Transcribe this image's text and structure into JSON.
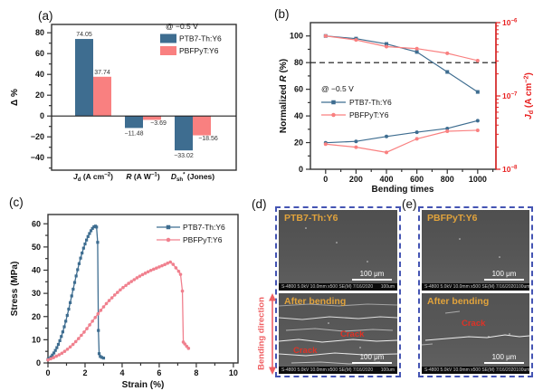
{
  "panels": {
    "a_label": "(a)",
    "b_label": "(b)",
    "c_label": "(c)",
    "d_label": "(d)",
    "e_label": "(e)"
  },
  "colors": {
    "series_blue": "#3e6d90",
    "series_pink": "#f98080",
    "series_pink_c": "#f0808e",
    "right_axis_red": "#e82222",
    "dashed_box_blue": "#4454b3",
    "sem_label_orange": "#e1a33c",
    "crack_red": "#e03226",
    "bending_red": "#ef5f62"
  },
  "sem": {
    "scale_bar_label": "100 μm",
    "meta_left": "S-4800 5.0kV 10.0mm x500 SE(M) 7/16/2020",
    "meta_right": "100um",
    "bending_direction_label": "Bending direction",
    "d": {
      "top_label": "PTB7-Th:Y6",
      "bottom_label": "After bending",
      "crack_labels": [
        "Crack",
        "Crack"
      ]
    },
    "e": {
      "top_label": "PBFPyT:Y6",
      "bottom_label": "After bending",
      "crack_labels": [
        "Crack"
      ]
    }
  },
  "chart_data": [
    {
      "id": "panel-a",
      "type": "bar",
      "ylabel": "Δ %",
      "ylim": [
        -52,
        88
      ],
      "yticks": [
        -40,
        -20,
        0,
        20,
        40,
        60,
        80
      ],
      "categories": [
        "Jd (A cm−2)",
        "R (A W−1)",
        "Dsh* (Jones)"
      ],
      "categories_rich": [
        [
          {
            "t": "J",
            "s": "i"
          },
          {
            "t": "d",
            "s": "sub"
          },
          {
            "t": " (A cm"
          },
          {
            "t": "−2",
            "s": "sup"
          },
          {
            "t": ")"
          }
        ],
        [
          {
            "t": "R",
            "s": "i"
          },
          {
            "t": " (A W"
          },
          {
            "t": "−1",
            "s": "sup"
          },
          {
            "t": ")"
          }
        ],
        [
          {
            "t": "D",
            "s": "i"
          },
          {
            "t": "sh",
            "s": "sub"
          },
          {
            "t": "*",
            "s": "sup"
          },
          {
            "t": " (Jones)"
          }
        ]
      ],
      "legend_title": "@ −0.5 V",
      "series": [
        {
          "name": "PTB7-Th:Y6",
          "color": "#3e6d90",
          "values": [
            74.05,
            -11.48,
            -33.02
          ],
          "value_labels": [
            "74.05",
            "−11.48",
            "−33.02"
          ]
        },
        {
          "name": "PBFPyT:Y6",
          "color": "#f98080",
          "values": [
            37.74,
            -3.69,
            -18.56
          ],
          "value_labels": [
            "37.74",
            "−3.69",
            "−18.56"
          ]
        }
      ]
    },
    {
      "id": "panel-b",
      "type": "line",
      "xlabel": "Bending times",
      "ylabel_left": "Normalized R (%)",
      "ylabel_left_rich": [
        {
          "t": "Normalized "
        },
        {
          "t": "R",
          "s": "i"
        },
        {
          "t": " (%)"
        }
      ],
      "ylabel_right": "Jd (A cm−2)",
      "ylabel_right_rich": [
        {
          "t": "J",
          "s": "i"
        },
        {
          "t": "d",
          "s": "sub"
        },
        {
          "t": " (A cm"
        },
        {
          "t": "−2",
          "s": "sup"
        },
        {
          "t": ")"
        }
      ],
      "x": [
        0,
        200,
        400,
        600,
        800,
        1000
      ],
      "xticks": [
        0,
        200,
        400,
        600,
        800,
        1000
      ],
      "xlim": [
        -100,
        1120
      ],
      "ylim_left": [
        0,
        110
      ],
      "yticks_left": [
        0,
        20,
        40,
        60,
        80,
        100
      ],
      "right_axis_log_range": [
        1e-08,
        1e-06
      ],
      "yticks_right": [
        1e-06,
        1e-07,
        1e-08
      ],
      "yticks_right_rich": [
        [
          {
            "t": "10"
          },
          {
            "t": "−6",
            "s": "sup"
          }
        ],
        [
          {
            "t": "10"
          },
          {
            "t": "−7",
            "s": "sup"
          }
        ],
        [
          {
            "t": "10"
          },
          {
            "t": "−8",
            "s": "sup"
          }
        ]
      ],
      "dashed_threshold_left": 80,
      "legend_title": "@ −0.5 V",
      "series": [
        {
          "name": "PTB7-Th:Y6",
          "axis": "left",
          "marker": "square",
          "color": "#3e6d90",
          "values": [
            100,
            98,
            94,
            88,
            73,
            58
          ]
        },
        {
          "name": "PBFPyT:Y6",
          "axis": "left",
          "marker": "circle",
          "color": "#f98080",
          "values": [
            100,
            97,
            92,
            90.5,
            87,
            81.5
          ]
        },
        {
          "name": "PTB7-Th:Y6 Jd",
          "axis": "right",
          "marker": "circle",
          "color": "#3e6d90",
          "values": [
            2.3e-08,
            2.4e-08,
            2.8e-08,
            3.2e-08,
            3.6e-08,
            4.6e-08
          ]
        },
        {
          "name": "PBFPyT:Y6 Jd",
          "axis": "right",
          "marker": "circle",
          "color": "#f98080",
          "values": [
            2.2e-08,
            2e-08,
            1.7e-08,
            2.6e-08,
            3.3e-08,
            3.4e-08
          ]
        }
      ],
      "legend_series_indices": [
        0,
        1
      ]
    },
    {
      "id": "panel-c",
      "type": "line",
      "xlabel": "Strain (%)",
      "ylabel": "Stress (MPa)",
      "xlim": [
        0,
        10.25
      ],
      "ylim": [
        0,
        64
      ],
      "xticks": [
        0,
        2,
        4,
        6,
        8,
        10
      ],
      "yticks": [
        0,
        10,
        20,
        30,
        40,
        50,
        60
      ],
      "series": [
        {
          "name": "PTB7-Th:Y6",
          "marker": "square",
          "color": "#3e6d90",
          "points": [
            [
              0,
              1.5
            ],
            [
              0.08,
              2
            ],
            [
              0.16,
              2.6
            ],
            [
              0.24,
              3.4
            ],
            [
              0.32,
              4.3
            ],
            [
              0.4,
              5.4
            ],
            [
              0.48,
              6.6
            ],
            [
              0.56,
              8
            ],
            [
              0.64,
              9.6
            ],
            [
              0.72,
              11.4
            ],
            [
              0.8,
              13.4
            ],
            [
              0.88,
              15.6
            ],
            [
              0.96,
              18
            ],
            [
              1.04,
              20.5
            ],
            [
              1.12,
              23.2
            ],
            [
              1.2,
              26
            ],
            [
              1.28,
              28.9
            ],
            [
              1.36,
              31.8
            ],
            [
              1.44,
              34.7
            ],
            [
              1.52,
              37.5
            ],
            [
              1.6,
              40.2
            ],
            [
              1.68,
              42.8
            ],
            [
              1.76,
              45.2
            ],
            [
              1.84,
              47.4
            ],
            [
              1.92,
              49.5
            ],
            [
              2.0,
              51.3
            ],
            [
              2.08,
              53
            ],
            [
              2.16,
              54.5
            ],
            [
              2.24,
              55.8
            ],
            [
              2.32,
              57
            ],
            [
              2.4,
              58
            ],
            [
              2.48,
              58.7
            ],
            [
              2.56,
              59
            ],
            [
              2.62,
              58.6
            ],
            [
              2.68,
              52
            ],
            [
              2.72,
              14
            ],
            [
              2.76,
              4
            ],
            [
              2.82,
              2.8
            ],
            [
              2.9,
              2.4
            ],
            [
              3.0,
              2.1
            ]
          ]
        },
        {
          "name": "PBFPyT:Y6",
          "marker": "circle",
          "color": "#f0808e",
          "points": [
            [
              0,
              1.3
            ],
            [
              0.15,
              1.8
            ],
            [
              0.3,
              2.3
            ],
            [
              0.45,
              2.9
            ],
            [
              0.6,
              3.5
            ],
            [
              0.75,
              4.2
            ],
            [
              0.9,
              5
            ],
            [
              1.05,
              5.9
            ],
            [
              1.2,
              6.9
            ],
            [
              1.35,
              8
            ],
            [
              1.5,
              9.2
            ],
            [
              1.65,
              10.5
            ],
            [
              1.8,
              11.9
            ],
            [
              1.95,
              13.3
            ],
            [
              2.1,
              14.8
            ],
            [
              2.25,
              16.4
            ],
            [
              2.4,
              18
            ],
            [
              2.55,
              19.6
            ],
            [
              2.7,
              21.2
            ],
            [
              2.85,
              22.7
            ],
            [
              3.0,
              24.2
            ],
            [
              3.15,
              25.6
            ],
            [
              3.3,
              26.9
            ],
            [
              3.45,
              28.1
            ],
            [
              3.6,
              29.3
            ],
            [
              3.75,
              30.4
            ],
            [
              3.9,
              31.5
            ],
            [
              4.05,
              32.5
            ],
            [
              4.2,
              33.4
            ],
            [
              4.35,
              34.3
            ],
            [
              4.5,
              35.1
            ],
            [
              4.65,
              35.9
            ],
            [
              4.8,
              36.7
            ],
            [
              4.95,
              37.4
            ],
            [
              5.1,
              38.1
            ],
            [
              5.25,
              38.7
            ],
            [
              5.4,
              39.3
            ],
            [
              5.55,
              39.9
            ],
            [
              5.7,
              40.4
            ],
            [
              5.85,
              40.9
            ],
            [
              6.0,
              41.4
            ],
            [
              6.15,
              41.9
            ],
            [
              6.3,
              42.4
            ],
            [
              6.45,
              43
            ],
            [
              6.6,
              43.5
            ],
            [
              6.75,
              42.5
            ],
            [
              6.9,
              41
            ],
            [
              7.05,
              39.5
            ],
            [
              7.15,
              38.2
            ],
            [
              7.25,
              31
            ],
            [
              7.3,
              9
            ],
            [
              7.38,
              8.2
            ],
            [
              7.48,
              7.2
            ],
            [
              7.58,
              6.3
            ]
          ]
        }
      ]
    }
  ]
}
